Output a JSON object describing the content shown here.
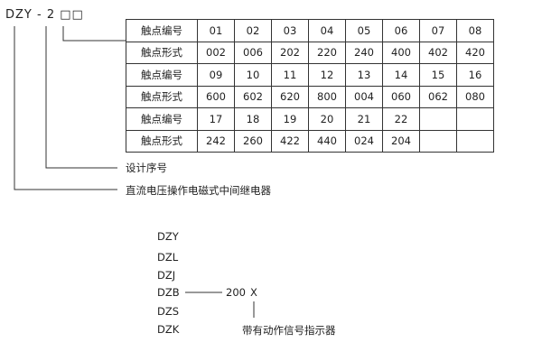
{
  "model_code": "DZY - 2 □□",
  "table": {
    "rows": [
      {
        "label": "触点编号",
        "cells": [
          "01",
          "02",
          "03",
          "04",
          "05",
          "06",
          "07",
          "08"
        ]
      },
      {
        "label": "触点形式",
        "cells": [
          "002",
          "006",
          "202",
          "220",
          "240",
          "400",
          "402",
          "420"
        ]
      },
      {
        "label": "触点编号",
        "cells": [
          "09",
          "10",
          "11",
          "12",
          "13",
          "14",
          "15",
          "16"
        ]
      },
      {
        "label": "触点形式",
        "cells": [
          "600",
          "602",
          "620",
          "800",
          "004",
          "060",
          "062",
          "080"
        ]
      },
      {
        "label": "触点编号",
        "cells": [
          "17",
          "18",
          "19",
          "20",
          "21",
          "22",
          "",
          ""
        ]
      },
      {
        "label": "触点形式",
        "cells": [
          "242",
          "260",
          "422",
          "440",
          "024",
          "204",
          "",
          ""
        ]
      }
    ]
  },
  "design_serial_label": "设计序号",
  "relay_type_label": "直流电压操作电磁式中间继电器",
  "series": [
    "DZY",
    "DZL",
    "DZJ",
    "DZB",
    "DZS",
    "DZK"
  ],
  "suffix_number": "200",
  "suffix_x": "X",
  "indicator_label": "带有动作信号指示器"
}
